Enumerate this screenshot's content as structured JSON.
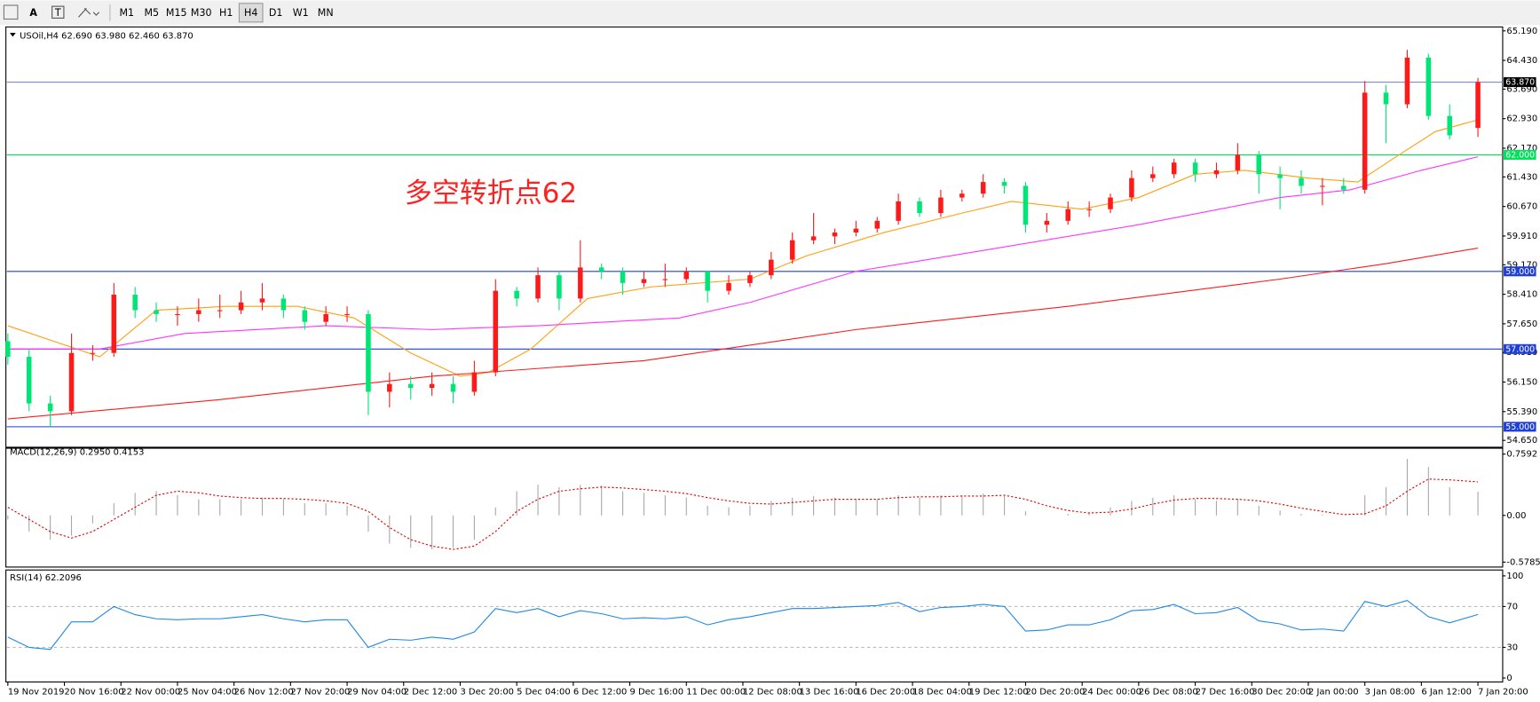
{
  "toolbar": {
    "tools": [
      "A",
      "T"
    ],
    "timeframes": [
      "M1",
      "M5",
      "M15",
      "M30",
      "H1",
      "H4",
      "D1",
      "W1",
      "MN"
    ],
    "active": "H4"
  },
  "chart_data": [
    {
      "type": "candlestick",
      "title": "USOil,H4 62.690 63.980 62.460 63.870",
      "x": [
        0,
        3,
        6,
        9,
        12,
        15,
        18,
        21,
        24,
        27,
        30,
        33,
        36,
        39,
        42,
        45,
        48,
        51,
        54,
        57,
        60,
        63,
        66,
        69,
        72,
        75,
        78,
        81,
        84,
        87,
        90,
        93,
        96,
        99,
        102,
        105,
        108,
        111,
        114,
        117,
        120,
        123,
        126,
        129,
        132,
        135,
        138,
        141,
        144,
        147,
        150,
        153,
        156,
        159,
        162,
        165,
        168,
        171,
        174,
        177,
        180,
        183,
        186,
        189,
        192,
        195,
        198,
        201,
        204,
        208
      ],
      "open": [
        57.2,
        56.8,
        55.6,
        55.4,
        56.9,
        56.9,
        58.4,
        58.0,
        57.9,
        57.9,
        58.0,
        58.0,
        58.2,
        58.3,
        58.0,
        57.7,
        57.9,
        57.9,
        55.9,
        56.1,
        56.0,
        56.1,
        55.9,
        56.4,
        58.5,
        58.3,
        58.9,
        58.3,
        59.1,
        59.0,
        58.7,
        58.8,
        58.8,
        59.0,
        58.5,
        58.7,
        58.9,
        59.3,
        59.8,
        59.9,
        60.0,
        60.1,
        60.3,
        60.8,
        60.5,
        60.9,
        61.0,
        61.3,
        61.2,
        60.2,
        60.3,
        60.6,
        60.6,
        60.9,
        61.4,
        61.5,
        61.8,
        61.5,
        61.6,
        62.0,
        61.5,
        61.4,
        61.2,
        61.2,
        61.1,
        63.6,
        63.3,
        64.5,
        63.0,
        62.69
      ],
      "high": [
        57.4,
        57.0,
        55.8,
        57.4,
        57.1,
        58.7,
        58.6,
        58.2,
        58.1,
        58.3,
        58.4,
        58.5,
        58.7,
        58.4,
        58.1,
        58.1,
        58.1,
        58.0,
        56.4,
        56.3,
        56.4,
        56.3,
        56.7,
        58.8,
        58.6,
        59.1,
        59.0,
        59.8,
        59.2,
        59.1,
        59.0,
        59.2,
        59.1,
        59.0,
        58.9,
        59.0,
        59.5,
        60.0,
        60.5,
        60.1,
        60.3,
        60.4,
        61.0,
        60.9,
        61.1,
        61.1,
        61.5,
        61.4,
        61.3,
        60.5,
        60.8,
        60.8,
        61.0,
        61.6,
        61.7,
        61.9,
        61.9,
        61.8,
        62.3,
        62.1,
        61.7,
        61.6,
        61.4,
        61.4,
        63.9,
        63.8,
        64.7,
        64.6,
        63.3,
        63.98
      ],
      "low": [
        56.6,
        55.4,
        55.0,
        55.3,
        56.7,
        56.8,
        57.8,
        57.7,
        57.6,
        57.7,
        57.8,
        57.9,
        58.0,
        57.8,
        57.5,
        57.6,
        57.7,
        55.3,
        55.5,
        55.7,
        55.8,
        55.6,
        55.8,
        56.3,
        58.1,
        58.2,
        58.0,
        58.2,
        58.8,
        58.4,
        58.6,
        58.6,
        58.7,
        58.2,
        58.4,
        58.6,
        58.8,
        59.2,
        59.7,
        59.7,
        59.9,
        60.0,
        60.2,
        60.4,
        60.4,
        60.8,
        60.9,
        61.0,
        60.0,
        60.0,
        60.2,
        60.4,
        60.5,
        60.8,
        61.3,
        61.4,
        61.3,
        61.4,
        61.5,
        61.0,
        60.6,
        61.0,
        60.7,
        61.0,
        61.0,
        62.3,
        63.2,
        62.9,
        62.4,
        62.46
      ],
      "close": [
        56.8,
        55.6,
        55.4,
        56.9,
        56.9,
        58.4,
        58.0,
        57.9,
        57.9,
        58.0,
        58.0,
        58.2,
        58.3,
        58.0,
        57.7,
        57.9,
        57.9,
        55.9,
        56.1,
        56.0,
        56.1,
        55.9,
        56.4,
        58.5,
        58.3,
        58.9,
        58.3,
        59.1,
        59.0,
        58.7,
        58.8,
        58.8,
        59.0,
        58.5,
        58.7,
        58.9,
        59.3,
        59.8,
        59.9,
        60.0,
        60.1,
        60.3,
        60.8,
        60.5,
        60.9,
        61.0,
        61.3,
        61.2,
        60.2,
        60.3,
        60.6,
        60.6,
        60.9,
        61.4,
        61.5,
        61.8,
        61.5,
        61.6,
        62.0,
        61.5,
        61.4,
        61.2,
        61.2,
        61.1,
        63.6,
        63.3,
        64.5,
        63.0,
        62.5,
        63.87
      ],
      "up_color": "#ff1a1a",
      "down_color": "#00e676",
      "series": [
        {
          "color": "#ffa010",
          "x": [
            0,
            13,
            21,
            31,
            41,
            49,
            57,
            64,
            68,
            74,
            82,
            91,
            105,
            113,
            124,
            135,
            142,
            152,
            160,
            168,
            175,
            184,
            191,
            196,
            202,
            208
          ],
          "values": [
            57.6,
            56.8,
            58.0,
            58.1,
            58.1,
            57.8,
            56.9,
            56.3,
            56.4,
            57.0,
            58.3,
            58.6,
            58.8,
            59.4,
            60.0,
            60.5,
            60.8,
            60.6,
            60.9,
            61.5,
            61.6,
            61.4,
            61.3,
            61.9,
            62.6,
            62.9
          ]
        },
        {
          "color": "#ff33ff",
          "x": [
            0,
            13,
            25,
            45,
            60,
            75,
            95,
            105,
            120,
            140,
            160,
            180,
            190,
            200,
            208
          ],
          "values": [
            57.0,
            57.0,
            57.4,
            57.6,
            57.5,
            57.6,
            57.8,
            58.2,
            59.0,
            59.6,
            60.2,
            60.9,
            61.1,
            61.6,
            61.95
          ]
        },
        {
          "color": "#ff1a1a",
          "x": [
            0,
            30,
            60,
            90,
            120,
            150,
            180,
            195,
            208
          ],
          "values": [
            55.2,
            55.7,
            56.3,
            56.7,
            57.5,
            58.1,
            58.8,
            59.2,
            59.6
          ]
        }
      ],
      "lines": [
        {
          "value": 63.87,
          "label": "63.870",
          "color": "#000000",
          "line_color": "#7b8fbf"
        },
        {
          "value": 62.0,
          "label": "62.000",
          "color": "#00e05a",
          "line_color": "#00e05a"
        },
        {
          "value": 59.0,
          "label": "59.000",
          "color": "#1f3fd6",
          "line_color": "#1f3fd6"
        },
        {
          "value": 57.0,
          "label": "57.000",
          "color": "#1f3fd6",
          "line_color": "#1f3fd6"
        },
        {
          "value": 55.0,
          "label": "55.000",
          "color": "#1f3fd6",
          "line_color": "#1f3fd6"
        }
      ],
      "annotation": {
        "text": "多空转折点62",
        "color": "#ff2020"
      },
      "xlim": [
        0,
        209
      ],
      "xticks": [
        {
          "value": 0,
          "label": "19 Nov 2019"
        },
        {
          "value": 8,
          "label": "20 Nov 16:00"
        },
        {
          "value": 16,
          "label": "22 Nov 00:00"
        },
        {
          "value": 24,
          "label": "25 Nov 04:00"
        },
        {
          "value": 32,
          "label": "26 Nov 12:00"
        },
        {
          "value": 40,
          "label": "27 Nov 20:00"
        },
        {
          "value": 48,
          "label": "29 Nov 04:00"
        },
        {
          "value": 56,
          "label": "2 Dec 12:00"
        },
        {
          "value": 64,
          "label": "3 Dec 20:00"
        },
        {
          "value": 72,
          "label": "5 Dec 04:00"
        },
        {
          "value": 80,
          "label": "6 Dec 12:00"
        },
        {
          "value": 88,
          "label": "9 Dec 16:00"
        },
        {
          "value": 96,
          "label": "11 Dec 00:00"
        },
        {
          "value": 104,
          "label": "12 Dec 08:00"
        },
        {
          "value": 112,
          "label": "13 Dec 16:00"
        },
        {
          "value": 120,
          "label": "16 Dec 20:00"
        },
        {
          "value": 128,
          "label": "18 Dec 04:00"
        },
        {
          "value": 136,
          "label": "19 Dec 12:00"
        },
        {
          "value": 144,
          "label": "20 Dec 20:00"
        },
        {
          "value": 152,
          "label": "24 Dec 00:00"
        },
        {
          "value": 160,
          "label": "26 Dec 08:00"
        },
        {
          "value": 168,
          "label": "27 Dec 16:00"
        },
        {
          "value": 176,
          "label": "30 Dec 20:00"
        },
        {
          "value": 184,
          "label": "2 Jan 00:00"
        },
        {
          "value": 192,
          "label": "3 Jan 08:00"
        },
        {
          "value": 200,
          "label": "6 Jan 12:00"
        },
        {
          "value": 208,
          "label": "7 Jan 20:00"
        }
      ],
      "ylim": [
        54.65,
        65.19
      ],
      "yticks": [
        {
          "value": 65.19,
          "label": "65.190"
        },
        {
          "value": 64.43,
          "label": "64.430"
        },
        {
          "value": 63.69,
          "label": "63.690"
        },
        {
          "value": 62.93,
          "label": "62.930"
        },
        {
          "value": 62.17,
          "label": "62.170"
        },
        {
          "value": 61.43,
          "label": "61.430"
        },
        {
          "value": 60.67,
          "label": "60.670"
        },
        {
          "value": 59.91,
          "label": "59.910"
        },
        {
          "value": 59.17,
          "label": "59.170"
        },
        {
          "value": 58.41,
          "label": "58.410"
        },
        {
          "value": 57.65,
          "label": "57.650"
        },
        {
          "value": 56.91,
          "label": "56.910"
        },
        {
          "value": 56.15,
          "label": "56.150"
        },
        {
          "value": 55.39,
          "label": "55.390"
        },
        {
          "value": 54.65,
          "label": "54.650"
        }
      ]
    },
    {
      "type": "macd",
      "title": "MACD(12,26,9) 0.2950 0.4153",
      "x": [
        0,
        3,
        6,
        9,
        12,
        15,
        18,
        21,
        24,
        27,
        30,
        33,
        36,
        39,
        42,
        45,
        48,
        51,
        54,
        57,
        60,
        63,
        66,
        69,
        72,
        75,
        78,
        81,
        84,
        87,
        90,
        93,
        96,
        99,
        102,
        105,
        108,
        111,
        114,
        117,
        120,
        123,
        126,
        129,
        132,
        135,
        138,
        141,
        144,
        147,
        150,
        153,
        156,
        159,
        162,
        165,
        168,
        171,
        174,
        177,
        180,
        183,
        186,
        189,
        192,
        195,
        198,
        201,
        204,
        208
      ],
      "histogram": [
        -0.05,
        -0.2,
        -0.3,
        -0.25,
        -0.1,
        0.15,
        0.28,
        0.3,
        0.25,
        0.2,
        0.2,
        0.2,
        0.22,
        0.2,
        0.15,
        0.15,
        0.12,
        -0.2,
        -0.35,
        -0.4,
        -0.42,
        -0.4,
        -0.3,
        0.1,
        0.3,
        0.38,
        0.35,
        0.38,
        0.37,
        0.3,
        0.28,
        0.25,
        0.22,
        0.12,
        0.1,
        0.12,
        0.18,
        0.22,
        0.24,
        0.22,
        0.2,
        0.2,
        0.25,
        0.22,
        0.25,
        0.25,
        0.27,
        0.24,
        0.05,
        0.0,
        0.02,
        0.04,
        0.1,
        0.18,
        0.22,
        0.25,
        0.2,
        0.18,
        0.2,
        0.12,
        0.06,
        0.02,
        0.01,
        0.0,
        0.25,
        0.35,
        0.7,
        0.6,
        0.35,
        0.295
      ],
      "signal": [
        0.1,
        -0.05,
        -0.2,
        -0.28,
        -0.2,
        -0.05,
        0.1,
        0.25,
        0.3,
        0.28,
        0.24,
        0.22,
        0.21,
        0.21,
        0.2,
        0.18,
        0.15,
        0.05,
        -0.15,
        -0.3,
        -0.38,
        -0.42,
        -0.38,
        -0.2,
        0.05,
        0.2,
        0.3,
        0.33,
        0.35,
        0.34,
        0.32,
        0.3,
        0.27,
        0.22,
        0.18,
        0.15,
        0.14,
        0.16,
        0.18,
        0.2,
        0.2,
        0.2,
        0.22,
        0.23,
        0.23,
        0.24,
        0.24,
        0.25,
        0.2,
        0.12,
        0.06,
        0.03,
        0.04,
        0.08,
        0.14,
        0.19,
        0.21,
        0.21,
        0.2,
        0.18,
        0.14,
        0.09,
        0.05,
        0.01,
        0.02,
        0.12,
        0.3,
        0.45,
        0.44,
        0.4153
      ],
      "histogram_color": "#a8a8a8",
      "signal_color": "#e00000",
      "xlim": [
        0,
        209
      ],
      "ylim": [
        -0.5785,
        0.7592
      ],
      "yticks": [
        0.7592,
        {
          "value": 0,
          "label": "0.00"
        },
        -0.5785
      ]
    },
    {
      "type": "line",
      "title": "RSI(14) 62.2096",
      "x": [
        0,
        3,
        6,
        9,
        12,
        15,
        18,
        21,
        24,
        27,
        30,
        33,
        36,
        39,
        42,
        45,
        48,
        51,
        54,
        57,
        60,
        63,
        66,
        69,
        72,
        75,
        78,
        81,
        84,
        87,
        90,
        93,
        96,
        99,
        102,
        105,
        108,
        111,
        114,
        117,
        120,
        123,
        126,
        129,
        132,
        135,
        138,
        141,
        144,
        147,
        150,
        153,
        156,
        159,
        162,
        165,
        168,
        171,
        174,
        177,
        180,
        183,
        186,
        189,
        192,
        195,
        198,
        201,
        204,
        208
      ],
      "values": [
        40,
        30,
        28,
        55,
        55,
        70,
        62,
        58,
        57,
        58,
        58,
        60,
        62,
        58,
        55,
        57,
        57,
        30,
        38,
        37,
        40,
        38,
        45,
        68,
        64,
        68,
        60,
        66,
        63,
        58,
        59,
        58,
        60,
        52,
        57,
        60,
        64,
        68,
        68,
        69,
        70,
        71,
        74,
        65,
        69,
        70,
        72,
        70,
        46,
        47,
        52,
        52,
        57,
        66,
        67,
        72,
        63,
        64,
        69,
        56,
        53,
        47,
        48,
        46,
        75,
        70,
        76,
        60,
        54,
        62.2096
      ],
      "color": "#1e88e5",
      "levels": [
        70,
        30
      ],
      "xlim": [
        0,
        209
      ],
      "ylim": [
        0,
        100
      ],
      "yticks": [
        100,
        70,
        30,
        0
      ]
    }
  ]
}
